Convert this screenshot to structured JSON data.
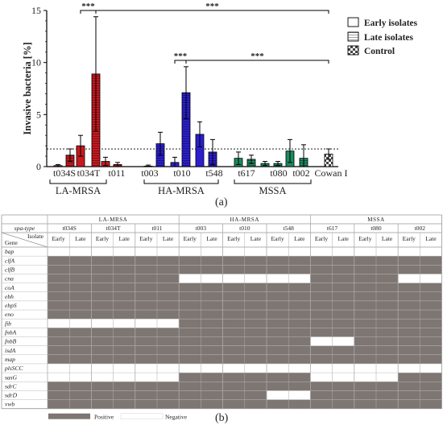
{
  "chart_data": [
    {
      "type": "bar",
      "panel_label": "(a)",
      "ylabel": "Invasive bacteria [%]",
      "ylim": [
        0,
        15
      ],
      "yticks": [
        "0",
        "5",
        "10",
        "15"
      ],
      "threshold": 1.7,
      "legend": [
        {
          "name": "Early isolates",
          "pattern": "empty"
        },
        {
          "name": "Late isolates",
          "pattern": "horizontal-lines"
        },
        {
          "name": "Control",
          "pattern": "checker"
        }
      ],
      "groups": [
        {
          "name": "LA-MRSA",
          "color": "#c8191e"
        },
        {
          "name": "HA-MRSA",
          "color": "#2b1fcf"
        },
        {
          "name": "MSSA",
          "color": "#1d8a5e"
        },
        {
          "name": "",
          "color": "#f0f0f0"
        }
      ],
      "ticklabels": [
        "t034S",
        "t034T",
        "t011",
        "t003",
        "t010",
        "t548",
        "t617",
        "t080",
        "t002",
        "Cowan I"
      ],
      "bars": [
        {
          "spa": "t034S",
          "phase": "Early",
          "value": 0.1,
          "err": 0.1
        },
        {
          "spa": "t034S",
          "phase": "Late",
          "value": 1.1,
          "err": 0.6
        },
        {
          "spa": "t034T",
          "phase": "Early",
          "value": 2.0,
          "err": 1.0
        },
        {
          "spa": "t034T",
          "phase": "Late",
          "value": 8.9,
          "err": 5.5
        },
        {
          "spa": "t011",
          "phase": "Early",
          "value": 0.5,
          "err": 0.4
        },
        {
          "spa": "t011",
          "phase": "Late",
          "value": 0.2,
          "err": 0.2
        },
        {
          "spa": "t003",
          "phase": "Early",
          "value": 0.05,
          "err": 0.1
        },
        {
          "spa": "t003",
          "phase": "Late",
          "value": 2.2,
          "err": 1.1
        },
        {
          "spa": "t010",
          "phase": "Early",
          "value": 0.4,
          "err": 0.5
        },
        {
          "spa": "t010",
          "phase": "Late",
          "value": 7.1,
          "err": 2.5
        },
        {
          "spa": "t548",
          "phase": "Early",
          "value": 3.1,
          "err": 1.2
        },
        {
          "spa": "t548",
          "phase": "Late",
          "value": 1.4,
          "err": 1.2
        },
        {
          "spa": "t617",
          "phase": "Early",
          "value": 0.8,
          "err": 0.6
        },
        {
          "spa": "t617",
          "phase": "Late",
          "value": 0.7,
          "err": 0.4
        },
        {
          "spa": "t080",
          "phase": "Early",
          "value": 0.3,
          "err": 0.2
        },
        {
          "spa": "t080",
          "phase": "Late",
          "value": 0.3,
          "err": 0.2
        },
        {
          "spa": "t002",
          "phase": "Early",
          "value": 1.5,
          "err": 1.1
        },
        {
          "spa": "t002",
          "phase": "Late",
          "value": 0.8,
          "err": 1.3
        },
        {
          "spa": "Cowan I",
          "phase": "Control",
          "value": 1.2,
          "err": 0.5
        }
      ],
      "significance": [
        {
          "label": "***",
          "from": "t034T Early",
          "to": "t034T Late"
        },
        {
          "label": "***",
          "from": "t034T Late",
          "to": "Cowan I"
        },
        {
          "label": "***",
          "from": "t010 Early",
          "to": "t010 Late"
        },
        {
          "label": "***",
          "from": "t010 Late",
          "to": "Cowan I"
        }
      ]
    },
    {
      "type": "table",
      "panel_label": "(b)",
      "header_spa": "spa-type",
      "header_isolate": "Isolate",
      "header_gene": "Gene",
      "groups": [
        {
          "name": "LA-MRSA",
          "span": 6
        },
        {
          "name": "HA-MRSA",
          "span": 6
        },
        {
          "name": "MSSA",
          "span": 6
        }
      ],
      "spa_types": [
        {
          "name": "t034S",
          "span": 2
        },
        {
          "name": "t034T",
          "span": 2
        },
        {
          "name": "t011",
          "span": 2
        },
        {
          "name": "t003",
          "span": 2
        },
        {
          "name": "t010",
          "span": 2
        },
        {
          "name": "t548",
          "span": 2
        },
        {
          "name": "t617",
          "span": 2
        },
        {
          "name": "t080",
          "span": 2
        },
        {
          "name": "t002",
          "span": 2
        }
      ],
      "isolates": [
        "Early",
        "Late",
        "Early",
        "Late",
        "Early",
        "Late",
        "Early",
        "Late",
        "Early",
        "Late",
        "Early",
        "Late",
        "Early",
        "Late",
        "Early",
        "Late",
        "Early",
        "Late"
      ],
      "genes": [
        "bap",
        "clfA",
        "clfB",
        "cna",
        "coA",
        "ebh",
        "ebpS",
        "eno",
        "fib",
        "fnbA",
        "fnbB",
        "isdA",
        "map",
        "plsSCC",
        "sasG",
        "sdrC",
        "sdrD",
        "vwb"
      ],
      "matrix": [
        [
          0,
          0,
          0,
          0,
          0,
          0,
          0,
          0,
          0,
          0,
          0,
          0,
          0,
          0,
          0,
          0,
          0,
          0
        ],
        [
          1,
          1,
          1,
          1,
          1,
          1,
          1,
          1,
          1,
          1,
          1,
          1,
          1,
          1,
          1,
          1,
          1,
          1
        ],
        [
          1,
          1,
          1,
          1,
          1,
          1,
          1,
          1,
          1,
          1,
          1,
          1,
          1,
          1,
          1,
          1,
          1,
          1
        ],
        [
          1,
          1,
          1,
          1,
          1,
          1,
          0,
          0,
          0,
          0,
          0,
          0,
          1,
          1,
          1,
          1,
          0,
          0
        ],
        [
          1,
          1,
          1,
          1,
          1,
          1,
          1,
          1,
          1,
          1,
          1,
          1,
          1,
          1,
          1,
          1,
          1,
          1
        ],
        [
          1,
          1,
          1,
          1,
          1,
          1,
          1,
          1,
          1,
          1,
          1,
          1,
          1,
          1,
          1,
          1,
          1,
          1
        ],
        [
          1,
          1,
          1,
          1,
          1,
          1,
          1,
          1,
          1,
          1,
          1,
          1,
          1,
          1,
          1,
          1,
          1,
          1
        ],
        [
          1,
          1,
          1,
          1,
          1,
          1,
          1,
          1,
          1,
          1,
          1,
          1,
          1,
          1,
          1,
          1,
          1,
          1
        ],
        [
          0,
          0,
          0,
          0,
          0,
          0,
          1,
          1,
          1,
          1,
          1,
          1,
          1,
          1,
          1,
          1,
          1,
          1
        ],
        [
          1,
          1,
          1,
          1,
          1,
          1,
          1,
          1,
          1,
          1,
          1,
          1,
          1,
          1,
          1,
          1,
          1,
          1
        ],
        [
          1,
          1,
          1,
          1,
          1,
          1,
          1,
          1,
          1,
          1,
          1,
          1,
          0,
          0,
          1,
          1,
          1,
          1
        ],
        [
          1,
          1,
          1,
          1,
          1,
          1,
          1,
          1,
          1,
          1,
          1,
          1,
          1,
          1,
          1,
          1,
          1,
          1
        ],
        [
          1,
          1,
          1,
          1,
          1,
          1,
          1,
          1,
          1,
          1,
          1,
          1,
          1,
          1,
          1,
          1,
          1,
          1
        ],
        [
          0,
          0,
          0,
          0,
          0,
          0,
          0,
          0,
          0,
          0,
          0,
          0,
          0,
          0,
          0,
          0,
          0,
          0
        ],
        [
          0,
          0,
          0,
          0,
          0,
          0,
          1,
          1,
          1,
          1,
          1,
          1,
          0,
          0,
          0,
          0,
          1,
          1
        ],
        [
          1,
          1,
          1,
          1,
          1,
          1,
          1,
          1,
          1,
          1,
          1,
          1,
          1,
          1,
          1,
          1,
          1,
          1
        ],
        [
          1,
          1,
          1,
          1,
          1,
          1,
          1,
          1,
          1,
          1,
          0,
          0,
          1,
          1,
          1,
          1,
          1,
          1
        ],
        [
          1,
          1,
          1,
          1,
          1,
          1,
          1,
          1,
          1,
          1,
          1,
          1,
          1,
          1,
          1,
          1,
          1,
          1
        ]
      ],
      "legend": [
        {
          "name": "Positive",
          "color": "#7e7672"
        },
        {
          "name": "Negative",
          "color": "#ffffff"
        }
      ]
    }
  ]
}
